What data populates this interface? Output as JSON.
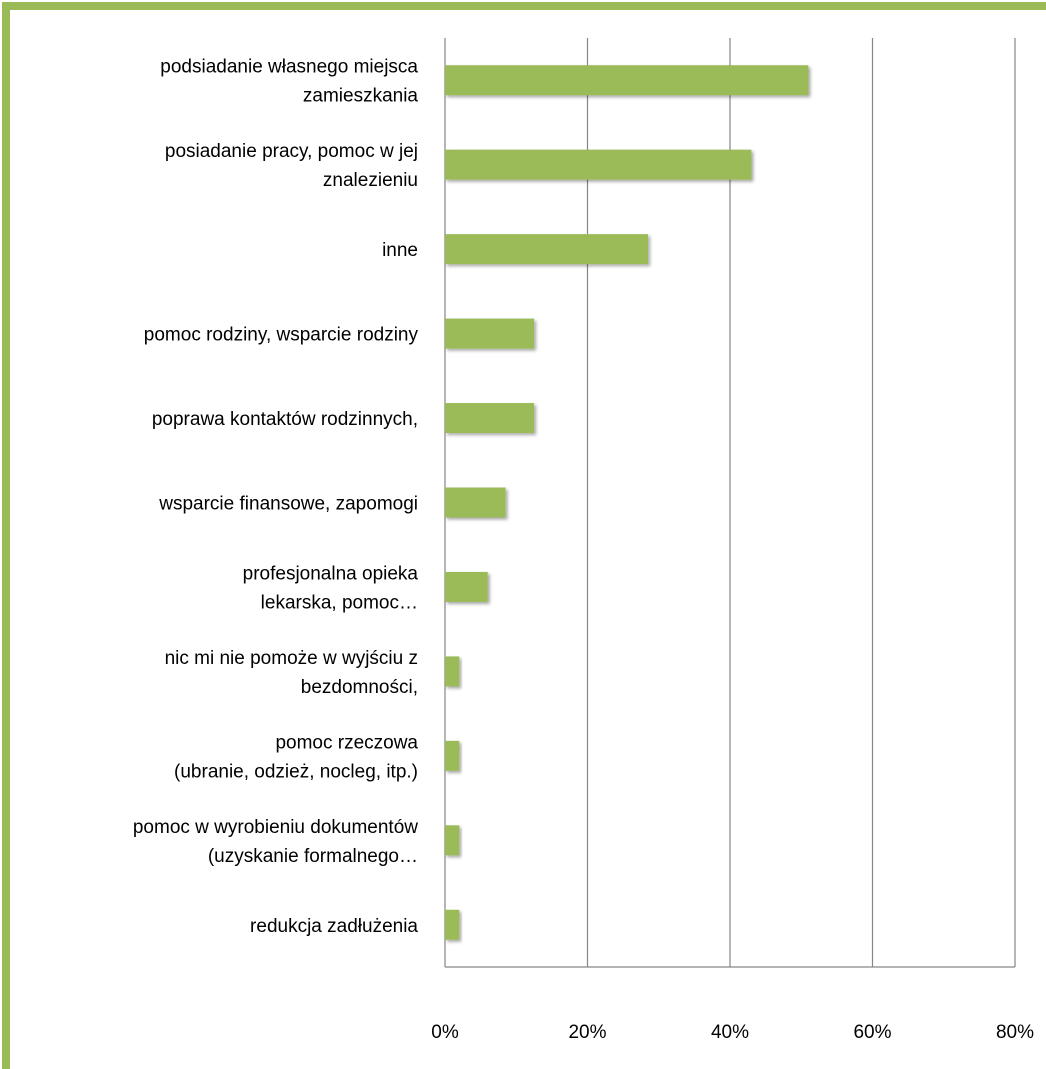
{
  "colors": {
    "frame": "#9bbb59",
    "bar": "#9bbb59",
    "gridline": "#868686",
    "text": "#000000"
  },
  "chart_data": {
    "type": "bar",
    "orientation": "horizontal",
    "categories": [
      [
        "podsiadanie własnego miejsca",
        "zamieszkania"
      ],
      [
        "posiadanie pracy, pomoc w jej",
        "znalezieniu"
      ],
      [
        "inne"
      ],
      [
        "pomoc rodziny, wsparcie rodziny"
      ],
      [
        "poprawa kontaktów rodzinnych,"
      ],
      [
        "wsparcie finansowe, zapomogi"
      ],
      [
        "profesjonalna opieka",
        "lekarska, pomoc…"
      ],
      [
        "nic mi nie pomoże w wyjściu z",
        "bezdomności,"
      ],
      [
        "pomoc rzeczowa",
        "(ubranie, odzież, nocleg, itp.)"
      ],
      [
        "pomoc w wyrobieniu dokumentów",
        "(uzyskanie formalnego…"
      ],
      [
        "redukcja zadłużenia"
      ]
    ],
    "values": [
      51,
      43,
      28.5,
      12.5,
      12.5,
      8.5,
      6,
      2,
      2,
      2,
      2
    ],
    "xlim": [
      0,
      80
    ],
    "xticks": [
      0,
      20,
      40,
      60,
      80
    ],
    "xtick_labels": [
      "0%",
      "20%",
      "40%",
      "60%",
      "80%"
    ],
    "grid": "vertical",
    "legend": "none",
    "title": "",
    "xlabel": "",
    "ylabel": ""
  }
}
